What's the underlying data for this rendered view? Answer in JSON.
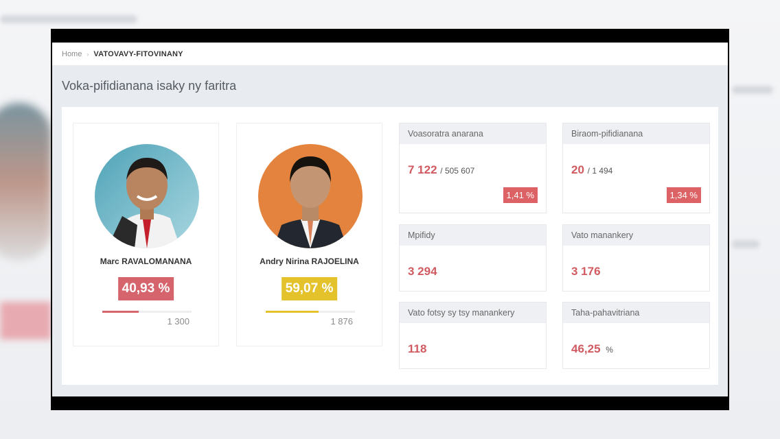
{
  "breadcrumb": {
    "home": "Home",
    "current": "VATOVAVY-FITOVINANY"
  },
  "page_title": "Voka-pifidianana isaky ny faritra",
  "candidates": [
    {
      "name": "Marc RAVALOMANANA",
      "percent_label": "40,93 %",
      "votes": "1 300",
      "share": 0.4093,
      "color": "#d5646d"
    },
    {
      "name": "Andry Nirina RAJOELINA",
      "percent_label": "59,07 %",
      "votes": "1 876",
      "share": 0.5907,
      "color": "#e3c22c"
    }
  ],
  "stats": {
    "registered": {
      "label": "Voasoratra anarana",
      "value": "7 122",
      "total": "/ 505 607",
      "badge": "1,41 %"
    },
    "offices": {
      "label": "Biraom-pifidianana",
      "value": "20",
      "total": "/ 1 494",
      "badge": "1,34 %"
    },
    "voters": {
      "label": "Mpifidy",
      "value": "3 294"
    },
    "valid": {
      "label": "Vato manankery",
      "value": "3 176"
    },
    "blank": {
      "label": "Vato fotsy sy tsy manankery",
      "value": "118"
    },
    "turnout": {
      "label": "Taha-pahavitriana",
      "value": "46,25",
      "unit": "%"
    }
  },
  "colors": {
    "accent": "#d05a60",
    "badge": "#dc6266",
    "gold": "#e3c22c"
  }
}
